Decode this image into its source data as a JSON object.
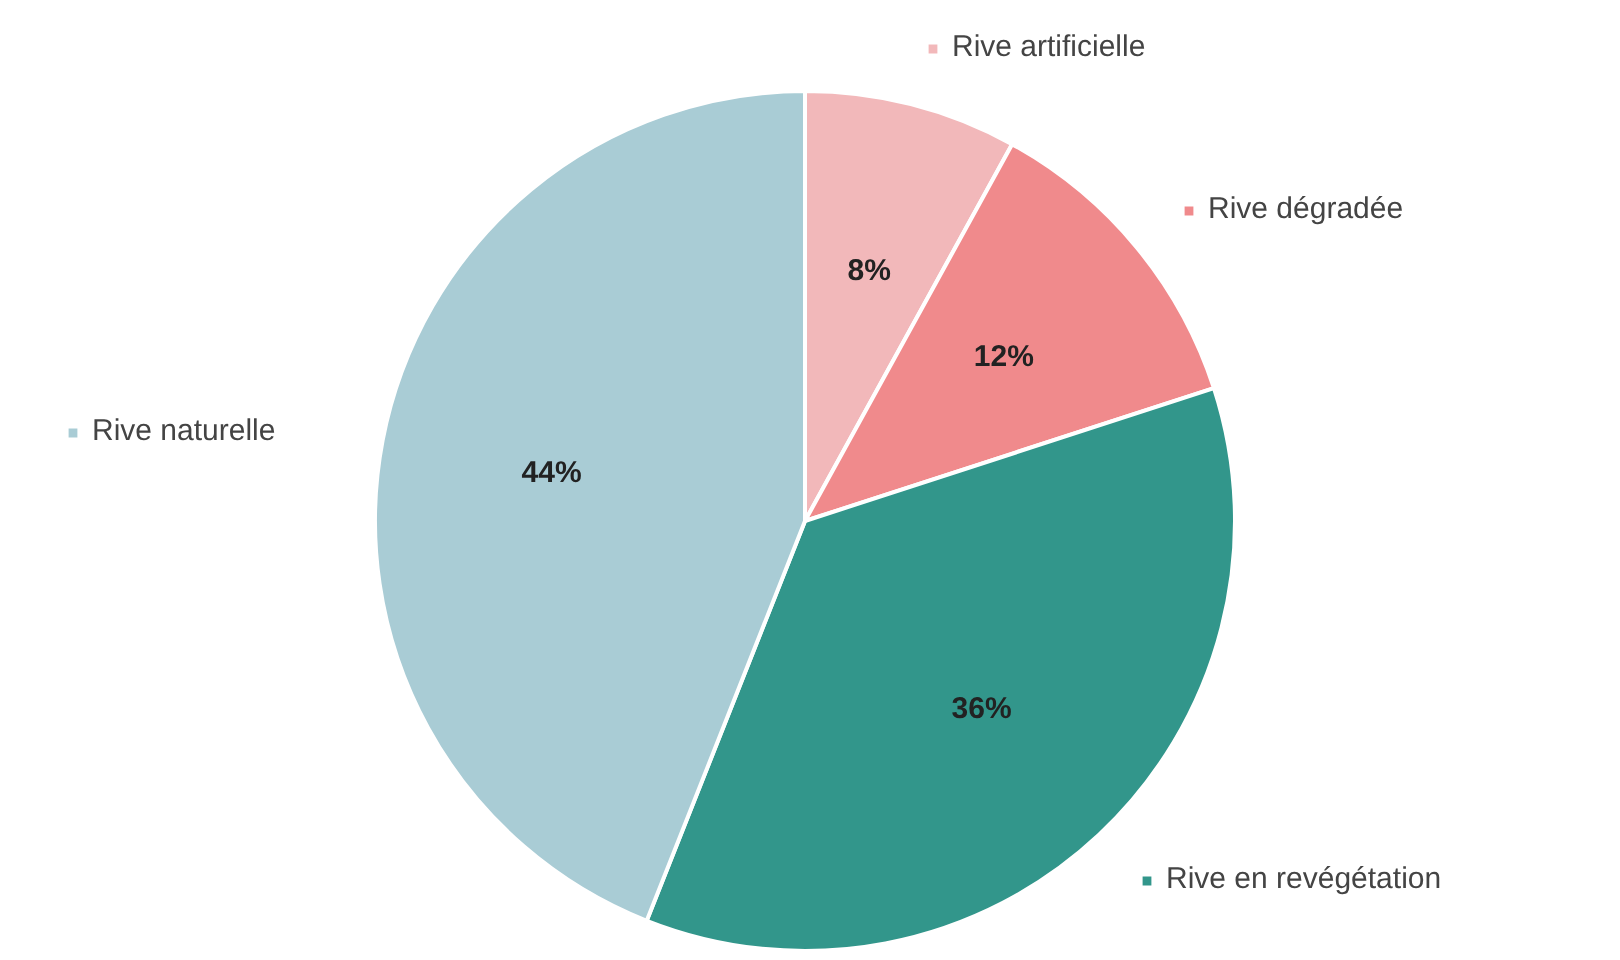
{
  "chart_data": {
    "type": "pie",
    "categories": [
      "Rive artificielle",
      "Rive dégradée",
      "Rive en revégétation",
      "Rive naturelle"
    ],
    "values": [
      8,
      12,
      36,
      44
    ],
    "colors": [
      "#f2b8ba",
      "#f08a8c",
      "#32968b",
      "#a9ccd5"
    ],
    "value_labels": [
      "8%",
      "12%",
      "36%",
      "44%"
    ],
    "legend": "top left"
  }
}
